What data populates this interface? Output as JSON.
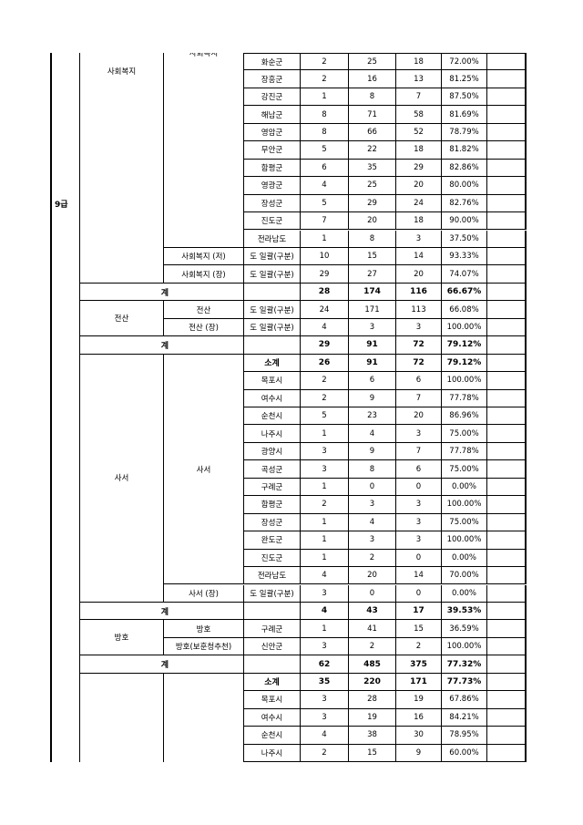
{
  "grade": "9급",
  "sections": [
    {
      "series": "사회복지",
      "groups": [
        {
          "name": "사회복지",
          "rows": [
            [
              "화순군",
              2,
              25,
              18,
              "72.00%"
            ],
            [
              "장흥군",
              2,
              16,
              13,
              "81.25%"
            ],
            [
              "강진군",
              1,
              8,
              7,
              "87.50%"
            ],
            [
              "해남군",
              8,
              71,
              58,
              "81.69%"
            ],
            [
              "영암군",
              8,
              66,
              52,
              "78.79%"
            ],
            [
              "무안군",
              5,
              22,
              18,
              "81.82%"
            ],
            [
              "함평군",
              6,
              35,
              29,
              "82.86%"
            ],
            [
              "영광군",
              4,
              25,
              20,
              "80.00%"
            ],
            [
              "장성군",
              5,
              29,
              24,
              "82.76%"
            ],
            [
              "진도군",
              7,
              20,
              18,
              "90.00%"
            ],
            [
              "전라남도",
              1,
              8,
              3,
              "37.50%"
            ]
          ]
        },
        {
          "name": "사회복지 (저)",
          "rows": [
            [
              "도 일괄(구분)",
              10,
              15,
              14,
              "93.33%"
            ]
          ]
        },
        {
          "name": "사회복지 (장)",
          "rows": [
            [
              "도 일괄(구분)",
              29,
              27,
              20,
              "74.07%"
            ]
          ]
        }
      ],
      "total": {
        "label": "계",
        "values": [
          28,
          174,
          116,
          "66.67%"
        ]
      }
    },
    {
      "series": "전산",
      "groups": [
        {
          "name": "전산",
          "rows": [
            [
              "도 일괄(구분)",
              24,
              171,
              113,
              "66.08%"
            ]
          ]
        },
        {
          "name": "전산 (장)",
          "rows": [
            [
              "도 일괄(구분)",
              4,
              3,
              3,
              "100.00%"
            ]
          ]
        }
      ],
      "total": {
        "label": "계",
        "values": [
          29,
          91,
          72,
          "79.12%"
        ]
      }
    },
    {
      "series": "사서",
      "groups": [
        {
          "name": "사서",
          "subtotal": {
            "label": "소계",
            "values": [
              26,
              91,
              72,
              "79.12%"
            ]
          },
          "rows": [
            [
              "목포시",
              2,
              6,
              6,
              "100.00%"
            ],
            [
              "여수시",
              2,
              9,
              7,
              "77.78%"
            ],
            [
              "순천시",
              5,
              23,
              20,
              "86.96%"
            ],
            [
              "나주시",
              1,
              4,
              3,
              "75.00%"
            ],
            [
              "광양시",
              3,
              9,
              7,
              "77.78%"
            ],
            [
              "곡성군",
              3,
              8,
              6,
              "75.00%"
            ],
            [
              "구례군",
              1,
              0,
              0,
              "0.00%"
            ],
            [
              "함평군",
              2,
              3,
              3,
              "100.00%"
            ],
            [
              "장성군",
              1,
              4,
              3,
              "75.00%"
            ],
            [
              "완도군",
              1,
              3,
              3,
              "100.00%"
            ],
            [
              "진도군",
              1,
              2,
              0,
              "0.00%"
            ],
            [
              "전라남도",
              4,
              20,
              14,
              "70.00%"
            ]
          ]
        },
        {
          "name": "사서 (장)",
          "rows": [
            [
              "도 일괄(구분)",
              3,
              0,
              0,
              "0.00%"
            ]
          ]
        }
      ],
      "total": {
        "label": "계",
        "values": [
          4,
          43,
          17,
          "39.53%"
        ]
      }
    },
    {
      "series": "방호",
      "groups": [
        {
          "name": "방호",
          "rows": [
            [
              "구례군",
              1,
              41,
              15,
              "36.59%"
            ]
          ]
        },
        {
          "name": "방호(보훈청추천)",
          "rows": [
            [
              "신안군",
              3,
              2,
              2,
              "100.00%"
            ]
          ]
        }
      ],
      "total": {
        "label": "계",
        "values": [
          62,
          485,
          375,
          "77.32%"
        ]
      }
    },
    {
      "series": "",
      "groups": [
        {
          "name": "",
          "subtotal": {
            "label": "소계",
            "values": [
              35,
              220,
              171,
              "77.73%"
            ]
          },
          "rows": [
            [
              "목포시",
              3,
              28,
              19,
              "67.86%"
            ],
            [
              "여수시",
              3,
              19,
              16,
              "84.21%"
            ],
            [
              "순천시",
              4,
              38,
              30,
              "78.95%"
            ],
            [
              "나주시",
              2,
              15,
              9,
              "60.00%"
            ]
          ]
        }
      ]
    }
  ]
}
